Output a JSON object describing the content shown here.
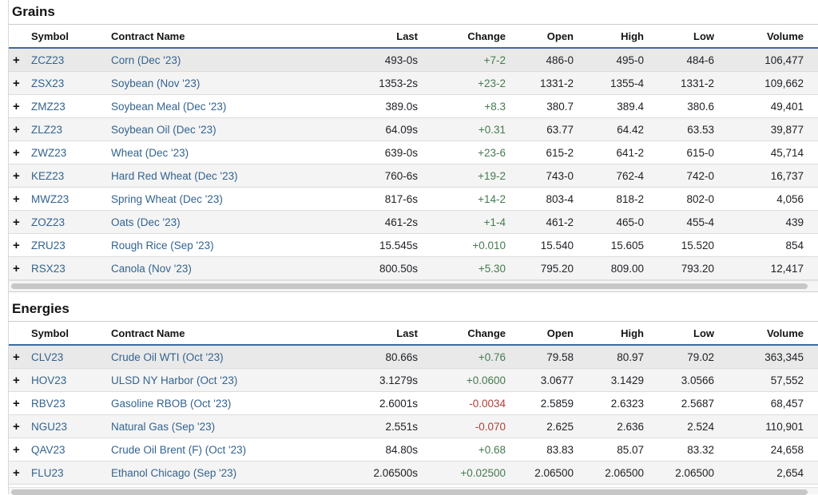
{
  "colors": {
    "link_blue": "#33638f",
    "positive_change": "#467a50",
    "negative_change": "#ae4139",
    "header_underline": "#3a6ba1"
  },
  "icons": {
    "expand": "+"
  },
  "sections": [
    {
      "title": "Grains",
      "columns": [
        "Symbol",
        "Contract Name",
        "Last",
        "Change",
        "Open",
        "High",
        "Low",
        "Volume"
      ],
      "rows": [
        {
          "symbol": "ZCZ23",
          "name": "Corn (Dec '23)",
          "last": "493-0s",
          "change": "+7-2",
          "open": "486-0",
          "high": "495-0",
          "low": "484-6",
          "volume": "106,477"
        },
        {
          "symbol": "ZSX23",
          "name": "Soybean (Nov '23)",
          "last": "1353-2s",
          "change": "+23-2",
          "open": "1331-2",
          "high": "1355-4",
          "low": "1331-2",
          "volume": "109,662"
        },
        {
          "symbol": "ZMZ23",
          "name": "Soybean Meal (Dec '23)",
          "last": "389.0s",
          "change": "+8.3",
          "open": "380.7",
          "high": "389.4",
          "low": "380.6",
          "volume": "49,401"
        },
        {
          "symbol": "ZLZ23",
          "name": "Soybean Oil (Dec '23)",
          "last": "64.09s",
          "change": "+0.31",
          "open": "63.77",
          "high": "64.42",
          "low": "63.53",
          "volume": "39,877"
        },
        {
          "symbol": "ZWZ23",
          "name": "Wheat (Dec '23)",
          "last": "639-0s",
          "change": "+23-6",
          "open": "615-2",
          "high": "641-2",
          "low": "615-0",
          "volume": "45,714"
        },
        {
          "symbol": "KEZ23",
          "name": "Hard Red Wheat (Dec '23)",
          "last": "760-6s",
          "change": "+19-2",
          "open": "743-0",
          "high": "762-4",
          "low": "742-0",
          "volume": "16,737"
        },
        {
          "symbol": "MWZ23",
          "name": "Spring Wheat (Dec '23)",
          "last": "817-6s",
          "change": "+14-2",
          "open": "803-4",
          "high": "818-2",
          "low": "802-0",
          "volume": "4,056"
        },
        {
          "symbol": "ZOZ23",
          "name": "Oats (Dec '23)",
          "last": "461-2s",
          "change": "+1-4",
          "open": "461-2",
          "high": "465-0",
          "low": "455-4",
          "volume": "439"
        },
        {
          "symbol": "ZRU23",
          "name": "Rough Rice (Sep '23)",
          "last": "15.545s",
          "change": "+0.010",
          "open": "15.540",
          "high": "15.605",
          "low": "15.520",
          "volume": "854"
        },
        {
          "symbol": "RSX23",
          "name": "Canola (Nov '23)",
          "last": "800.50s",
          "change": "+5.30",
          "open": "795.20",
          "high": "809.00",
          "low": "793.20",
          "volume": "12,417"
        }
      ]
    },
    {
      "title": "Energies",
      "columns": [
        "Symbol",
        "Contract Name",
        "Last",
        "Change",
        "Open",
        "High",
        "Low",
        "Volume"
      ],
      "rows": [
        {
          "symbol": "CLV23",
          "name": "Crude Oil WTI (Oct '23)",
          "last": "80.66s",
          "change": "+0.76",
          "open": "79.58",
          "high": "80.97",
          "low": "79.02",
          "volume": "363,345"
        },
        {
          "symbol": "HOV23",
          "name": "ULSD NY Harbor (Oct '23)",
          "last": "3.1279s",
          "change": "+0.0600",
          "open": "3.0677",
          "high": "3.1429",
          "low": "3.0566",
          "volume": "57,552"
        },
        {
          "symbol": "RBV23",
          "name": "Gasoline RBOB (Oct '23)",
          "last": "2.6001s",
          "change": "-0.0034",
          "open": "2.5859",
          "high": "2.6323",
          "low": "2.5687",
          "volume": "68,457"
        },
        {
          "symbol": "NGU23",
          "name": "Natural Gas (Sep '23)",
          "last": "2.551s",
          "change": "-0.070",
          "open": "2.625",
          "high": "2.636",
          "low": "2.524",
          "volume": "110,901"
        },
        {
          "symbol": "QAV23",
          "name": "Crude Oil Brent (F) (Oct '23)",
          "last": "84.80s",
          "change": "+0.68",
          "open": "83.83",
          "high": "85.07",
          "low": "83.32",
          "volume": "24,658"
        },
        {
          "symbol": "FLU23",
          "name": "Ethanol Chicago (Sep '23)",
          "last": "2.06500s",
          "change": "+0.02500",
          "open": "2.06500",
          "high": "2.06500",
          "low": "2.06500",
          "volume": "2,654"
        }
      ]
    }
  ]
}
